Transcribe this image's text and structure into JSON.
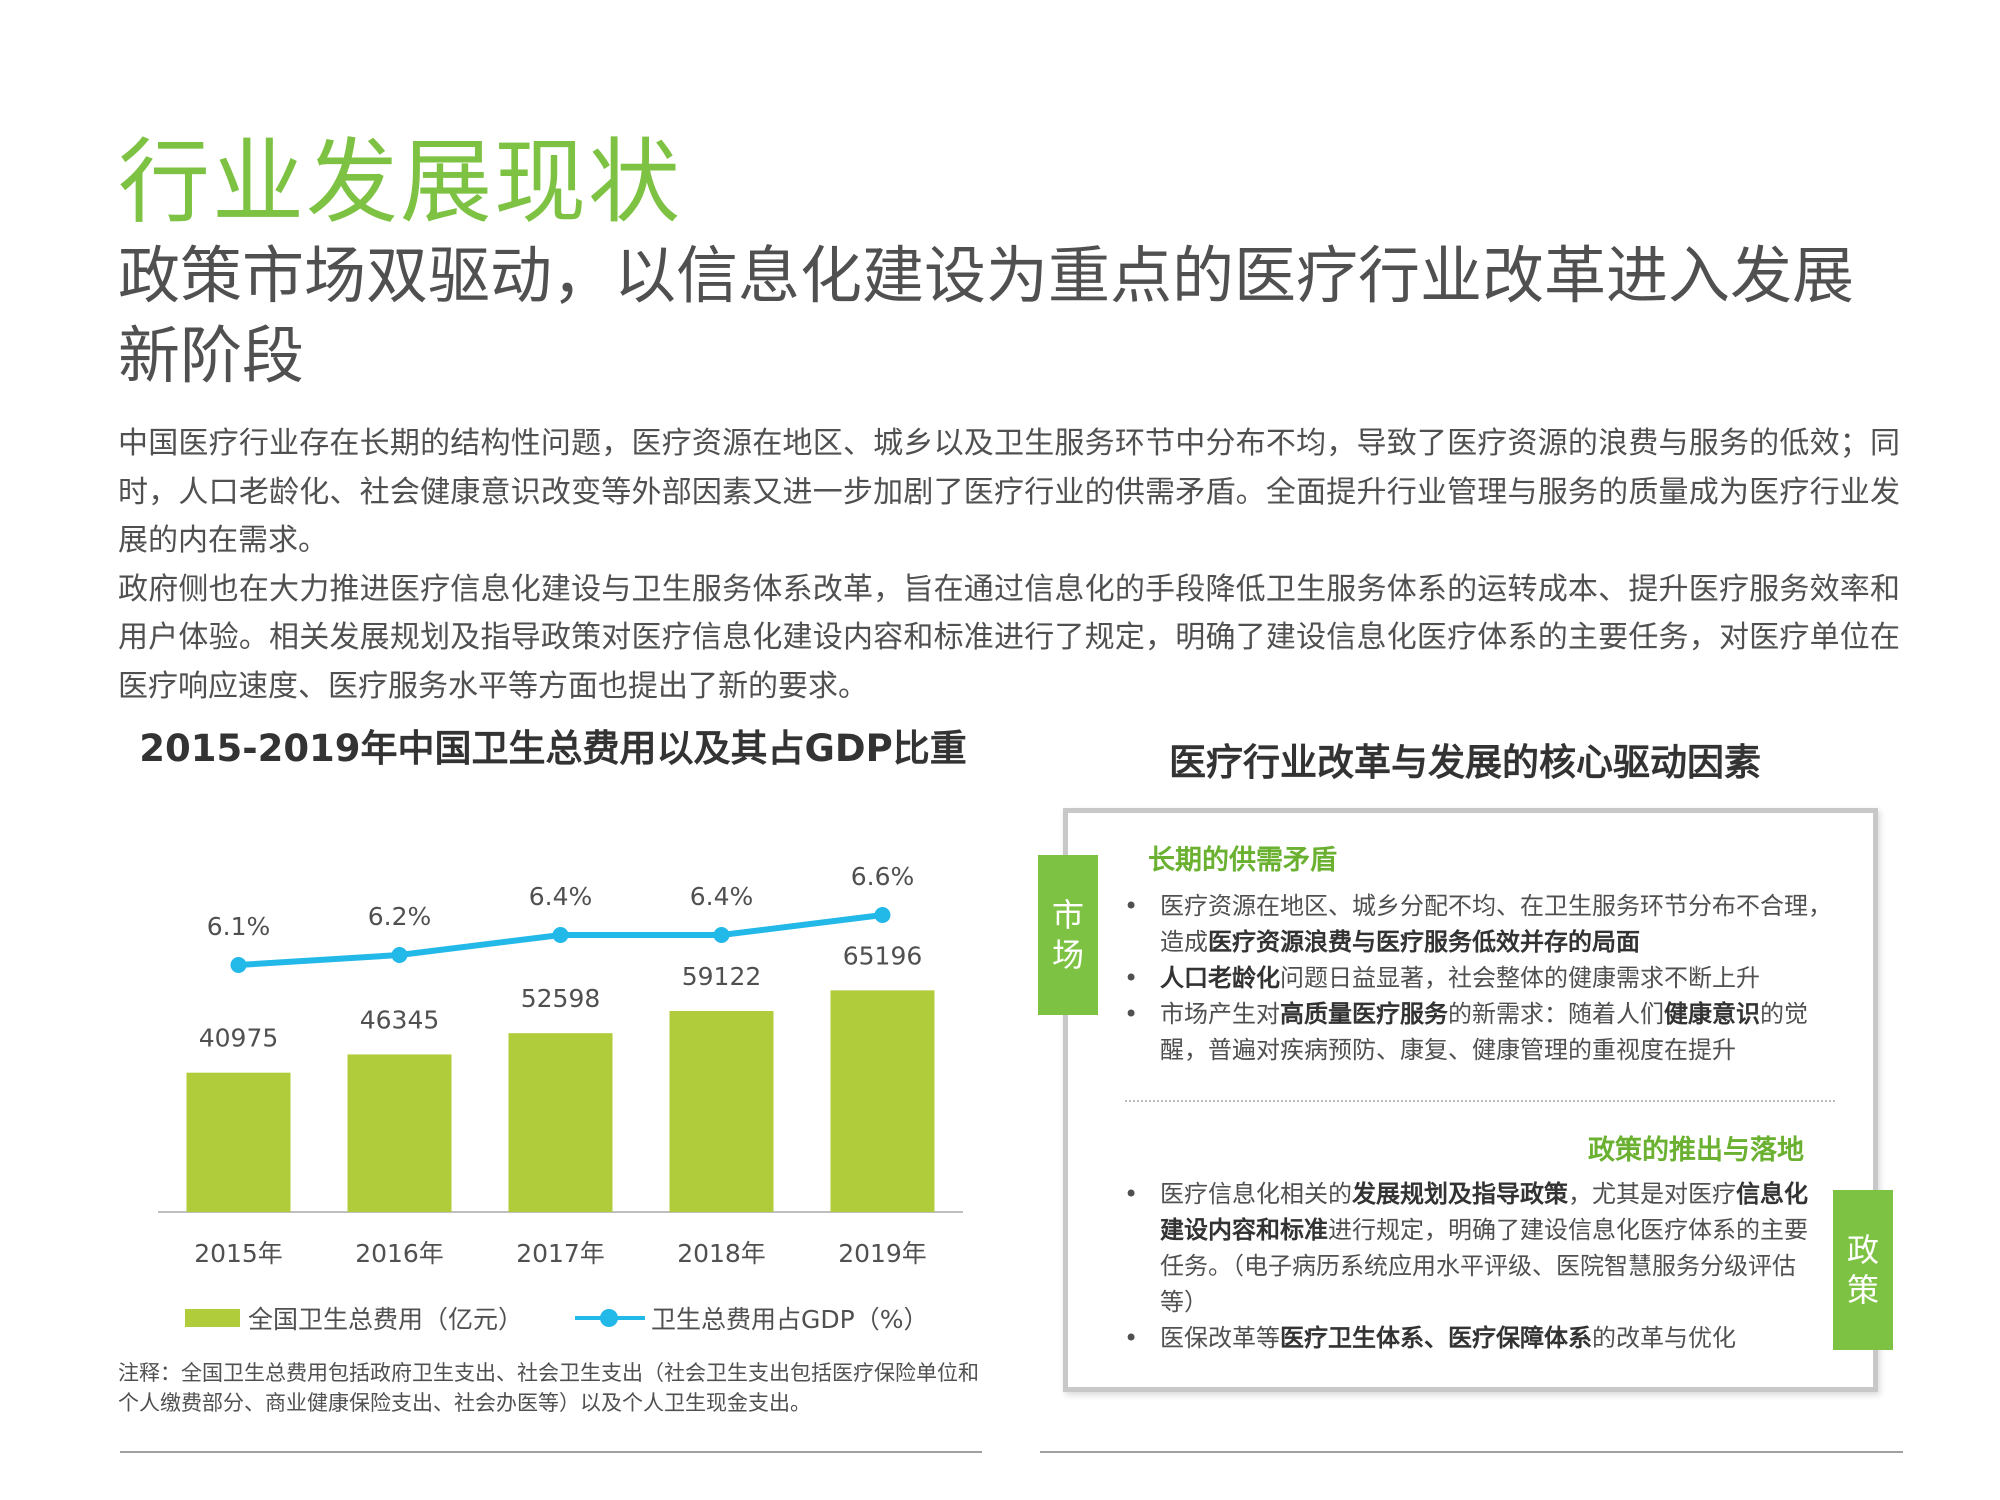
{
  "page": {
    "section_title": "行业发展现状",
    "headline": "政策市场双驱动，以信息化建设为重点的医疗行业改革进入发展新阶段",
    "paragraphs": [
      "中国医疗行业存在长期的结构性问题，医疗资源在地区、城乡以及卫生服务环节中分布不均，导致了医疗资源的浪费与服务的低效；同时，人口老龄化、社会健康意识改变等外部因素又进一步加剧了医疗行业的供需矛盾。全面提升行业管理与服务的质量成为医疗行业发展的内在需求。",
      "政府侧也在大力推进医疗信息化建设与卫生服务体系改革，旨在通过信息化的手段降低卫生服务体系的运转成本、提升医疗服务效率和用户体验。相关发展规划及指导政策对医疗信息化建设内容和标准进行了规定，明确了建设信息化医疗体系的主要任务，对医疗单位在医疗响应速度、医疗服务水平等方面也提出了新的要求。"
    ]
  },
  "chart_data": {
    "type": "bar",
    "title": "2015-2019年中国卫生总费用以及其占GDP比重",
    "categories": [
      "2015年",
      "2016年",
      "2017年",
      "2018年",
      "2019年"
    ],
    "series": [
      {
        "name": "全国卫生总费用（亿元）",
        "type": "bar",
        "values": [
          40975,
          46345,
          52598,
          59122,
          65196
        ],
        "labels": [
          "40975",
          "46345",
          "52598",
          "59122",
          "65196"
        ],
        "color": "#b1cc3a"
      },
      {
        "name": "卫生总费用占GDP（%）",
        "type": "line",
        "values": [
          6.1,
          6.2,
          6.4,
          6.4,
          6.6
        ],
        "labels": [
          "6.1%",
          "6.2%",
          "6.4%",
          "6.4%",
          "6.6%"
        ],
        "color": "#22b8e8"
      }
    ],
    "legend_position": "bottom",
    "grid": false,
    "note": "注释：全国卫生总费用包括政府卫生支出、社会卫生支出（社会卫生支出包括医疗保险单位和个人缴费部分、商业健康保险支出、社会办医等）以及个人卫生现金支出。"
  },
  "drivers": {
    "title": "医疗行业改革与发展的核心驱动因素",
    "market": {
      "tab_label": "市场",
      "heading": "长期的供需矛盾",
      "items": [
        [
          [
            "医疗资源在地区、城乡分配不均、在卫生服务环节分布不合理，造成",
            false
          ],
          [
            "医疗资源浪费与医疗服务低效并存的局面",
            true
          ]
        ],
        [
          [
            "人口老龄化",
            true
          ],
          [
            "问题日益显著，社会整体的健康需求不断上升",
            false
          ]
        ],
        [
          [
            "市场产生对",
            false
          ],
          [
            "高质量医疗服务",
            true
          ],
          [
            "的新需求：随着人们",
            false
          ],
          [
            "健康意识",
            true
          ],
          [
            "的觉醒，普遍对疾病预防、康复、健康管理的重视度在提升",
            false
          ]
        ]
      ]
    },
    "policy": {
      "tab_label": "政策",
      "heading": "政策的推出与落地",
      "items": [
        [
          [
            "医疗信息化相关的",
            false
          ],
          [
            "发展规划及指导政策",
            true
          ],
          [
            "，尤其是对医疗",
            false
          ],
          [
            "信息化建设内容和标准",
            true
          ],
          [
            "进行规定，明确了建设信息化医疗体系的主要任务。（电子病历系统应用水平评级、医院智慧服务分级评估等）",
            false
          ]
        ],
        [
          [
            "医保改革等",
            false
          ],
          [
            "医疗卫生体系、医疗保障体系",
            true
          ],
          [
            "的改革与优化",
            false
          ]
        ]
      ]
    }
  },
  "colors": {
    "accent_green": "#7dc243",
    "bar_green": "#b1cc3a",
    "line_blue": "#22b8e8"
  }
}
